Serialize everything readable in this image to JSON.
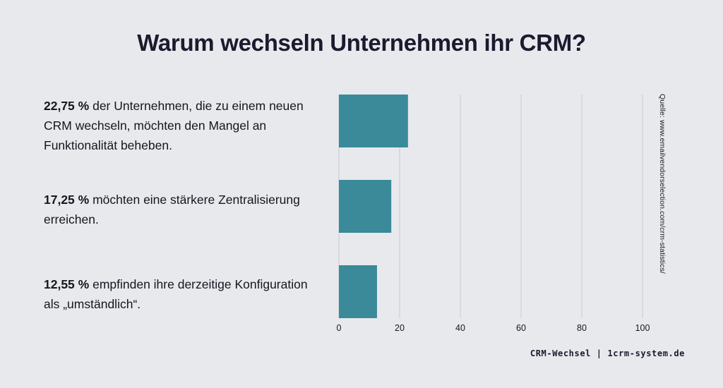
{
  "title": "Warum wechseln Unternehmen ihr CRM?",
  "labels": [
    {
      "value_text": "22,75 %",
      "text": " der Unternehmen, die zu einem neuen CRM wechseln, möchten den Mangel an Funktionalität beheben."
    },
    {
      "value_text": "17,25 %",
      "text": " möchten eine stärkere Zentralisierung erreichen."
    },
    {
      "value_text": "12,55 %",
      "text": " empfinden ihre derzeitige Konfiguration als „umständlich“."
    }
  ],
  "source": "Quelle: www.emailvendorselection.com/crm-statistics/",
  "footer": "CRM-Wechsel | 1crm-system.de",
  "colors": {
    "bar": "#3a8a9a",
    "grid": "#c9cbd0",
    "background": "#e8e9ed"
  },
  "chart_data": {
    "type": "bar",
    "orientation": "horizontal",
    "values": [
      22.75,
      17.25,
      12.55
    ],
    "xlim": [
      0,
      100
    ],
    "xticks": [
      0,
      20,
      40,
      60,
      80,
      100
    ],
    "grid": true
  }
}
